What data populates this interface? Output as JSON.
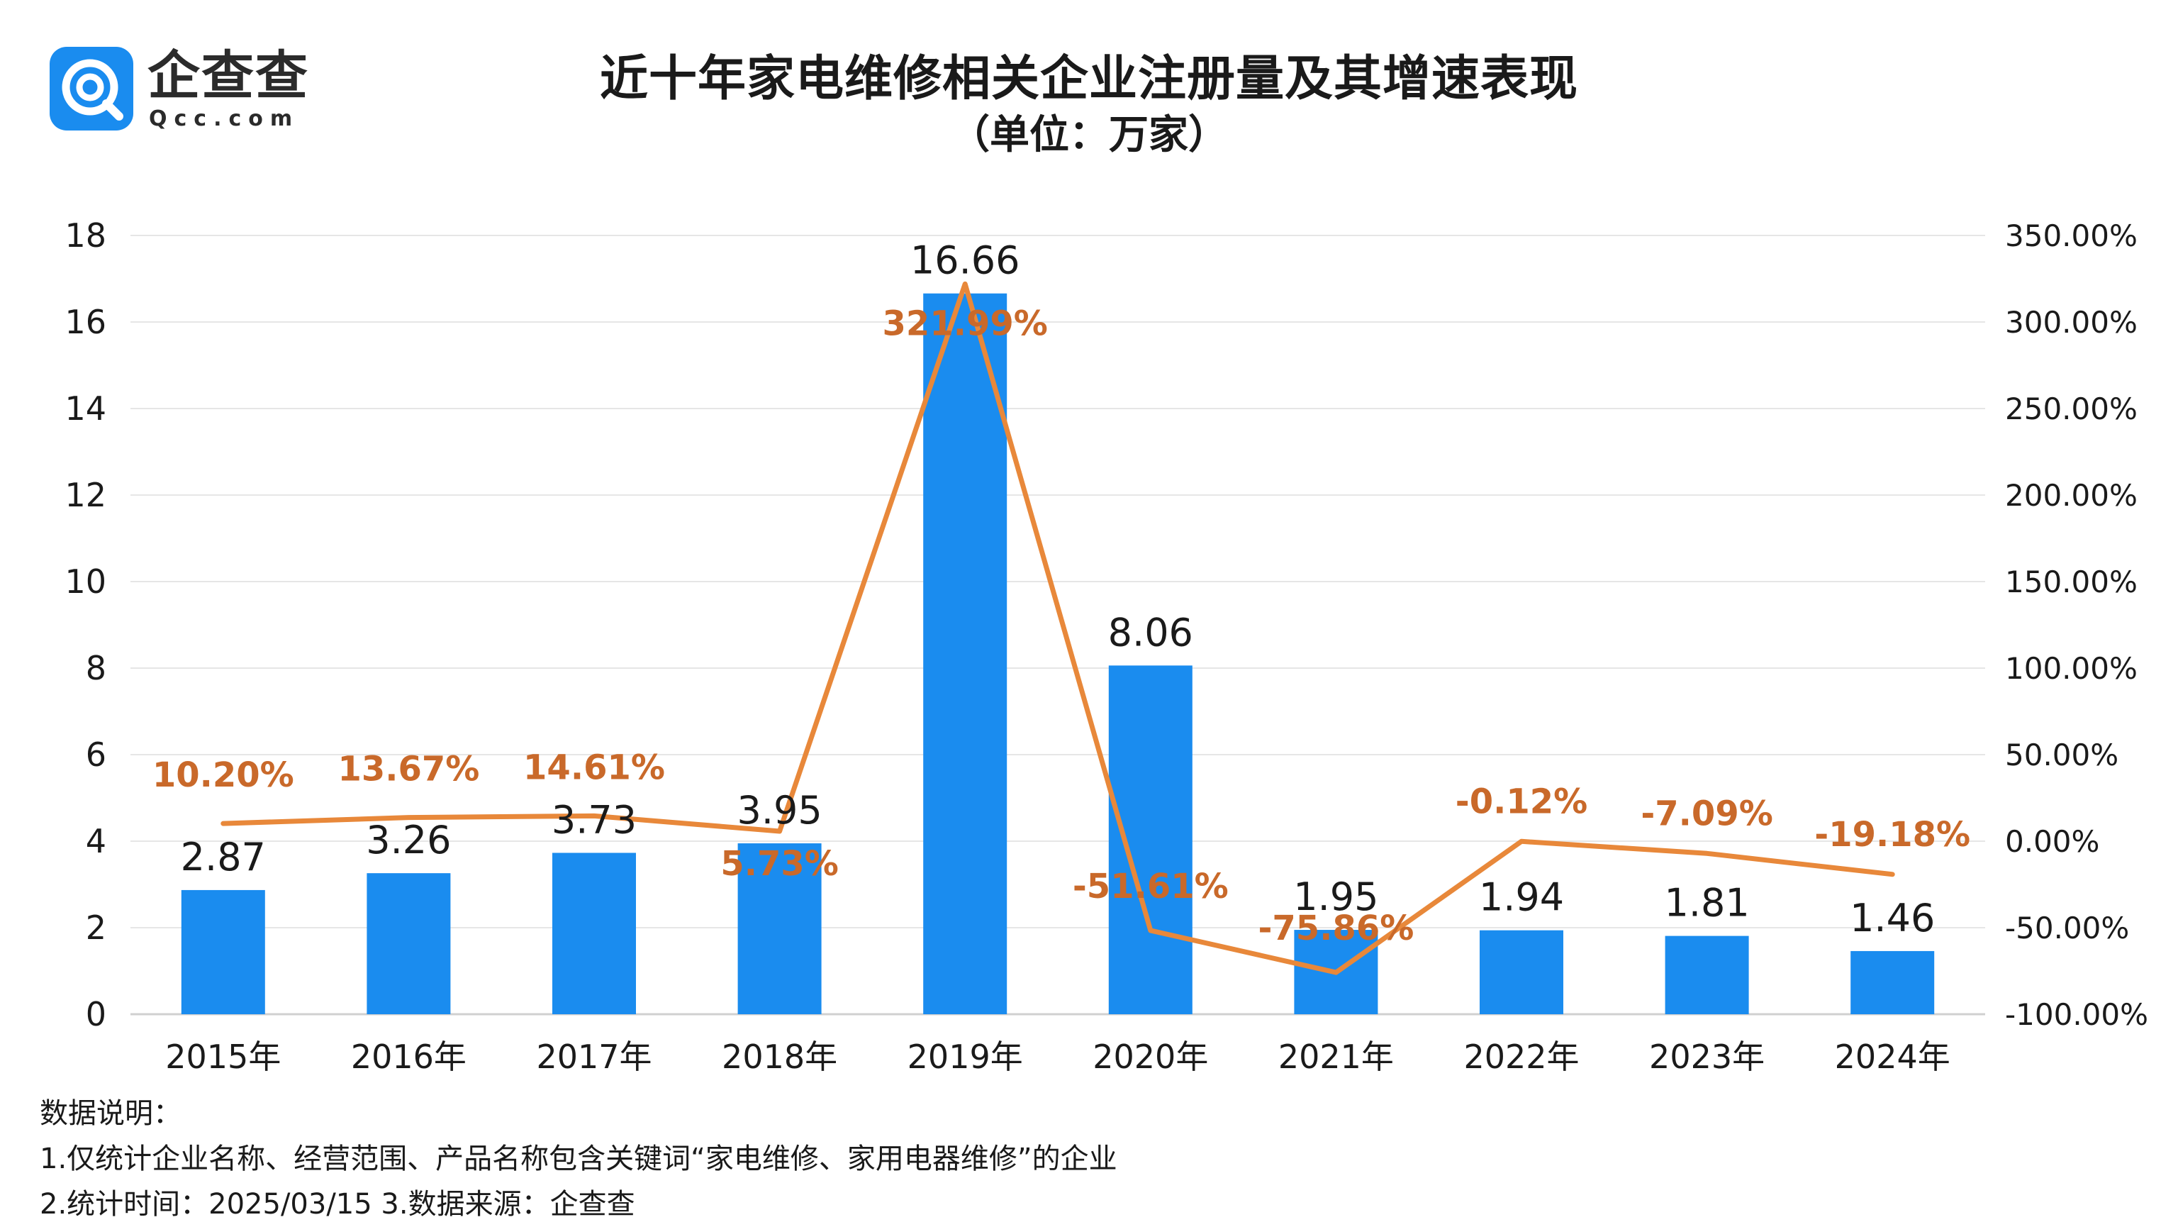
{
  "logo": {
    "name": "企查查",
    "sub": "Qcc.com"
  },
  "header": {
    "title": "近十年家电维修相关企业注册量及其增速表现",
    "subtitle": "（单位：万家）"
  },
  "colors": {
    "bar": "#1a8cef",
    "line": "#e8883a",
    "line_label": "#c9692a",
    "grid": "#e6e6e6",
    "axis": "#d0d0d0",
    "text": "#1a1a1a"
  },
  "chart_data": {
    "type": "bar",
    "title": "近十年家电维修相关企业注册量及其增速表现",
    "ylabel": "万家",
    "categories": [
      "2015年",
      "2016年",
      "2017年",
      "2018年",
      "2019年",
      "2020年",
      "2021年",
      "2022年",
      "2023年",
      "2024年"
    ],
    "series": [
      {
        "name": "注册量",
        "type": "bar",
        "axis": "left",
        "values": [
          2.87,
          3.26,
          3.73,
          3.95,
          16.66,
          8.06,
          1.95,
          1.94,
          1.81,
          1.46
        ],
        "labels": [
          "2.87",
          "3.26",
          "3.73",
          "3.95",
          "16.66",
          "8.06",
          "1.95",
          "1.94",
          "1.81",
          "1.46"
        ]
      },
      {
        "name": "增速",
        "type": "line",
        "axis": "right",
        "values": [
          10.2,
          13.67,
          14.61,
          5.73,
          321.99,
          -51.61,
          -75.86,
          -0.12,
          -7.09,
          -19.18
        ],
        "labels": [
          "10.20%",
          "13.67%",
          "14.61%",
          "5.73%",
          "321.99%",
          "-51.61%",
          "-75.86%",
          "-0.12%",
          "-7.09%",
          "-19.18%"
        ]
      }
    ],
    "y_left": {
      "min": 0,
      "max": 18,
      "ticks": [
        "0",
        "2",
        "4",
        "6",
        "8",
        "10",
        "12",
        "14",
        "16",
        "18"
      ]
    },
    "y_right": {
      "min": -100,
      "max": 350,
      "ticks": [
        "-100.00%",
        "-50.00%",
        "0.00%",
        "50.00%",
        "100.00%",
        "150.00%",
        "200.00%",
        "250.00%",
        "300.00%",
        "350.00%"
      ]
    },
    "grid": true
  },
  "notes": {
    "heading": "数据说明：",
    "line1": "1.仅统计企业名称、经营范围、产品名称包含关键词“家电维修、家用电器维修”的企业",
    "line2": "2.统计时间：2025/03/15    3.数据来源：企查查"
  }
}
